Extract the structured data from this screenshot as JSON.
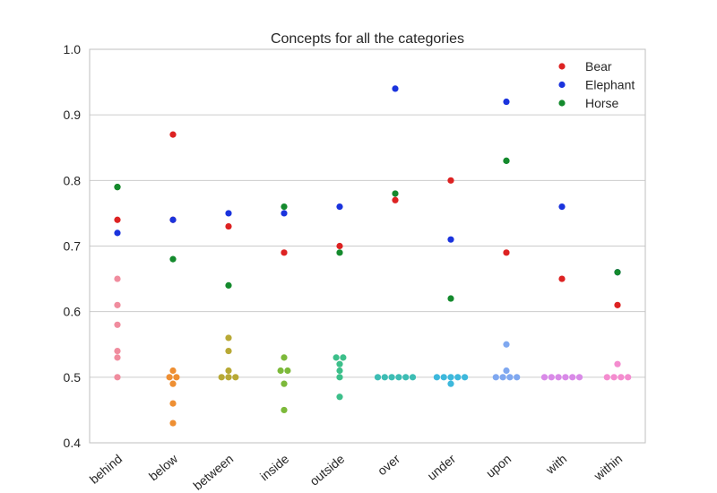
{
  "chart_data": {
    "type": "scatter",
    "title": "Concepts for all the categories",
    "xlabel": "",
    "ylabel": "",
    "ylim": [
      0.4,
      1.0
    ],
    "yticks": [
      "0.4",
      "0.5",
      "0.6",
      "0.7",
      "0.8",
      "0.9",
      "1.0"
    ],
    "grid": "horizontal",
    "legend_position": "top-right",
    "categories": [
      "behind",
      "below",
      "between",
      "inside",
      "outside",
      "over",
      "under",
      "upon",
      "with",
      "within"
    ],
    "category_colors": [
      "#f08c9e",
      "#ee8f33",
      "#b8a935",
      "#7cb93a",
      "#3cbf8a",
      "#3dbdb4",
      "#3db8dc",
      "#7fa8f0",
      "#d98ae8",
      "#f48ccf"
    ],
    "category_points": [
      [
        0.65,
        0.61,
        0.58,
        0.54,
        0.53,
        0.5
      ],
      [
        0.51,
        0.5,
        0.5,
        0.49,
        0.46,
        0.43
      ],
      [
        0.56,
        0.54,
        0.51,
        0.5,
        0.5,
        0.5
      ],
      [
        0.53,
        0.51,
        0.51,
        0.49,
        0.45
      ],
      [
        0.53,
        0.53,
        0.52,
        0.51,
        0.5,
        0.47
      ],
      [
        0.5,
        0.5,
        0.5,
        0.5,
        0.5,
        0.5
      ],
      [
        0.5,
        0.5,
        0.5,
        0.5,
        0.5,
        0.49
      ],
      [
        0.55,
        0.51,
        0.5,
        0.5,
        0.5,
        0.5
      ],
      [
        0.5,
        0.5,
        0.5,
        0.5,
        0.5,
        0.5
      ],
      [
        0.52,
        0.5,
        0.5,
        0.5,
        0.5
      ]
    ],
    "series": [
      {
        "name": "Bear",
        "color": "#dd2222",
        "values": [
          0.74,
          0.87,
          0.73,
          0.69,
          0.7,
          0.77,
          0.8,
          0.69,
          0.65,
          0.61
        ]
      },
      {
        "name": "Elephant",
        "color": "#1a33dd",
        "values": [
          0.72,
          0.74,
          0.75,
          0.75,
          0.76,
          0.94,
          0.71,
          0.92,
          0.76,
          0.66
        ]
      },
      {
        "name": "Horse",
        "color": "#148a2d",
        "values": [
          0.79,
          0.68,
          0.64,
          0.76,
          0.69,
          0.78,
          0.62,
          0.83,
          null,
          0.66
        ]
      }
    ],
    "extra_points": [
      {
        "category": "behind",
        "value": 0.79,
        "color": "#3a7a1c"
      },
      {
        "category": "within",
        "value": 0.66,
        "color": "#f48ccf"
      },
      {
        "category": "below",
        "value": 0.74,
        "color": "#e03333"
      },
      {
        "category": "upon",
        "value": 0.83,
        "color": "#2e8f4a"
      }
    ]
  }
}
